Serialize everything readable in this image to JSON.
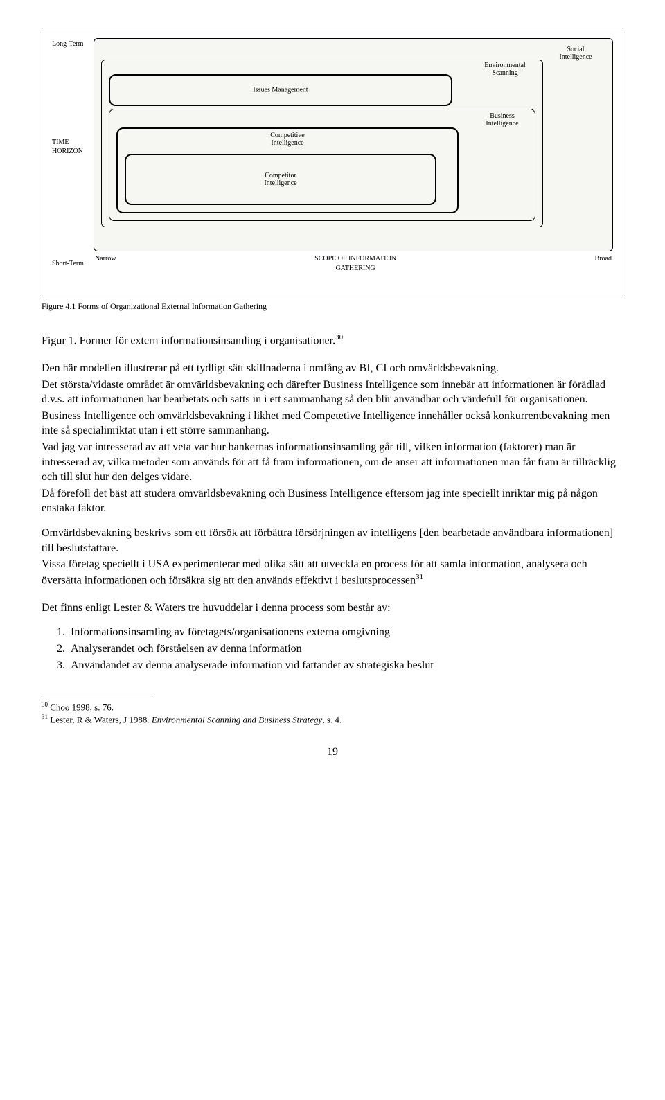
{
  "diagram": {
    "y_axis": {
      "top": "Long-Term",
      "mid": "TIME\nHORIZON",
      "bottom": "Short-Term"
    },
    "x_axis": {
      "left": "Narrow",
      "center": "SCOPE OF INFORMATION\nGATHERING",
      "right": "Broad"
    },
    "boxes": {
      "social": "Social\nIntelligence",
      "env": "Environmental\nScanning",
      "issues": "Issues Management",
      "bi": "Business\nIntelligence",
      "competitive": "Competitive\nIntelligence",
      "competitor": "Competitor\nIntelligence"
    },
    "src_caption": "Figure 4.1   Forms of Organizational External Information Gathering",
    "style": {
      "border_color": "#000000",
      "bg": "#f6f6f3",
      "label_fontsize": 10,
      "frame_radius": 6
    }
  },
  "caption": {
    "label": "Figur 1. Former för extern informationsinsamling i organisationer.",
    "ref": "30"
  },
  "paragraphs": {
    "p1a": "Den här modellen illustrerar på ett tydligt sätt skillnaderna i omfång av BI, CI och omvärldsbevakning.",
    "p1b": "Det största/vidaste området är omvärldsbevakning och därefter Business Intelligence som innebär att informationen är förädlad d.v.s. att informationen har bearbetats och satts in i ett sammanhang så den blir användbar och värdefull för organisationen.",
    "p1c": "Business Intelligence och omvärldsbevakning i likhet med Competetive Intelligence innehåller också konkurrentbevakning men inte så specialinriktat utan i ett större sammanhang.",
    "p1d": "Vad jag var intresserad av att veta var hur bankernas informationsinsamling går till, vilken information (faktorer) man är intresserad av, vilka metoder som används för att få fram informationen, om de anser att informationen man får fram är tillräcklig och till slut hur den delges vidare.",
    "p1e": "Då föreföll det bäst att studera omvärldsbevakning och Business Intelligence eftersom jag inte speciellt inriktar mig på någon enstaka faktor.",
    "p2a": "Omvärldsbevakning beskrivs som ett försök att förbättra försörjningen av intelligens [den bearbetade användbara informationen] till beslutsfattare.",
    "p2b_pre": "Vissa företag speciellt i USA experimenterar med olika sätt att utveckla en process för att samla information, analysera och översätta informationen och försäkra sig att den används effektivt i beslutsprocessen",
    "p2b_ref": "31",
    "p3": "Det finns enligt Lester & Waters tre huvuddelar i denna process som består av:"
  },
  "list": [
    "Informationsinsamling av företagets/organisationens externa omgivning",
    "Analyserandet och förståelsen av denna information",
    "Användandet av denna analyserade information vid fattandet av strategiska beslut"
  ],
  "footnotes": {
    "f30": {
      "n": "30",
      "text": "Choo 1998, s. 76."
    },
    "f31": {
      "n": "31",
      "pre": "Lester, R & Waters, J 1988. ",
      "italic": "Environmental Scanning and Business Strategy",
      "post": ", s. 4."
    }
  },
  "page_number": "19"
}
